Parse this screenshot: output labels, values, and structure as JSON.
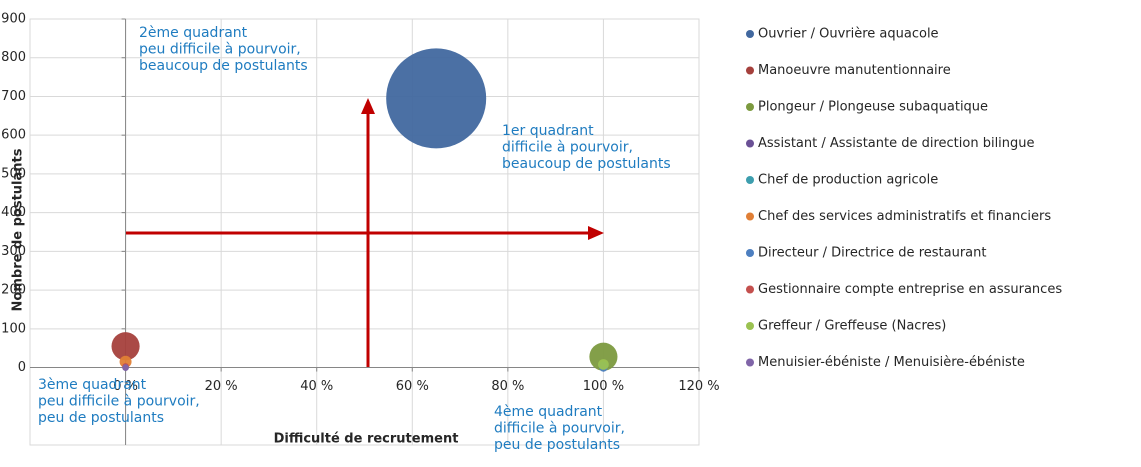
{
  "chart_data": {
    "type": "bubble",
    "x_label": "Difficulté de recrutement",
    "y_label": "Nombre de postulants",
    "xlim": [
      -20,
      120
    ],
    "xticks": [
      {
        "value": 0,
        "label": "0 %"
      },
      {
        "value": 20,
        "label": "20 %"
      },
      {
        "value": 40,
        "label": "40 %"
      },
      {
        "value": 60,
        "label": "60 %"
      },
      {
        "value": 80,
        "label": "80 %"
      },
      {
        "value": 100,
        "label": "100 %"
      },
      {
        "value": 120,
        "label": "120 %"
      }
    ],
    "ylim": [
      -200,
      900
    ],
    "yticks": [
      0,
      100,
      200,
      300,
      400,
      500,
      600,
      700,
      800,
      900
    ],
    "grid": true,
    "legend": "right",
    "annotations": [
      {
        "lines": [
          "2ème quadrant",
          "peu difficile à pourvoir,",
          "beaucoup de postulants"
        ]
      },
      {
        "lines": [
          "1er quadrant",
          "difficile à pourvoir,",
          "beaucoup de postulants"
        ]
      },
      {
        "lines": [
          "3ème quadrant",
          "peu difficile à pourvoir,",
          "peu de postulants"
        ]
      },
      {
        "lines": [
          "4ème quadrant",
          "difficile à pourvoir,",
          "peu de postulants"
        ]
      }
    ],
    "series": [
      {
        "name": "Ouvrier / Ouvrière aquacole",
        "color": "#41689f",
        "x": [
          65
        ],
        "values": [
          695
        ],
        "sizes": [
          695
        ]
      },
      {
        "name": "Manoeuvre manutentionnaire",
        "color": "#a5403c",
        "x": [
          0
        ],
        "values": [
          55
        ],
        "sizes": [
          55
        ]
      },
      {
        "name": "Plongeur / Plongeuse subaquatique",
        "color": "#7c9a3f",
        "x": [
          100
        ],
        "values": [
          28
        ],
        "sizes": [
          55
        ]
      },
      {
        "name": "Assistant / Assistante de direction bilingue",
        "color": "#6a5095",
        "x": [
          0
        ],
        "values": [
          0
        ],
        "sizes": [
          3
        ]
      },
      {
        "name": "Chef de production agricole",
        "color": "#3d9eae",
        "x": [
          100
        ],
        "values": [
          5
        ],
        "sizes": [
          5
        ]
      },
      {
        "name": "Chef des services administratifs et financiers",
        "color": "#e07f36",
        "x": [
          0
        ],
        "values": [
          15
        ],
        "sizes": [
          10
        ]
      },
      {
        "name": "Directeur / Directrice de restaurant",
        "color": "#4d7fc0",
        "x": [
          100
        ],
        "values": [
          0
        ],
        "sizes": [
          5
        ]
      },
      {
        "name": "Gestionnaire compte entreprise en assurances",
        "color": "#c4504e",
        "x": [
          0
        ],
        "values": [
          3
        ],
        "sizes": [
          3
        ]
      },
      {
        "name": "Greffeur / Greffeuse (Nacres)",
        "color": "#9bc251",
        "x": [
          100
        ],
        "values": [
          8
        ],
        "sizes": [
          8
        ]
      },
      {
        "name": "Menuisier-ébéniste / Menuisière-ébéniste",
        "color": "#8065a8",
        "x": [
          0
        ],
        "values": [
          0
        ],
        "sizes": [
          3
        ]
      }
    ]
  }
}
